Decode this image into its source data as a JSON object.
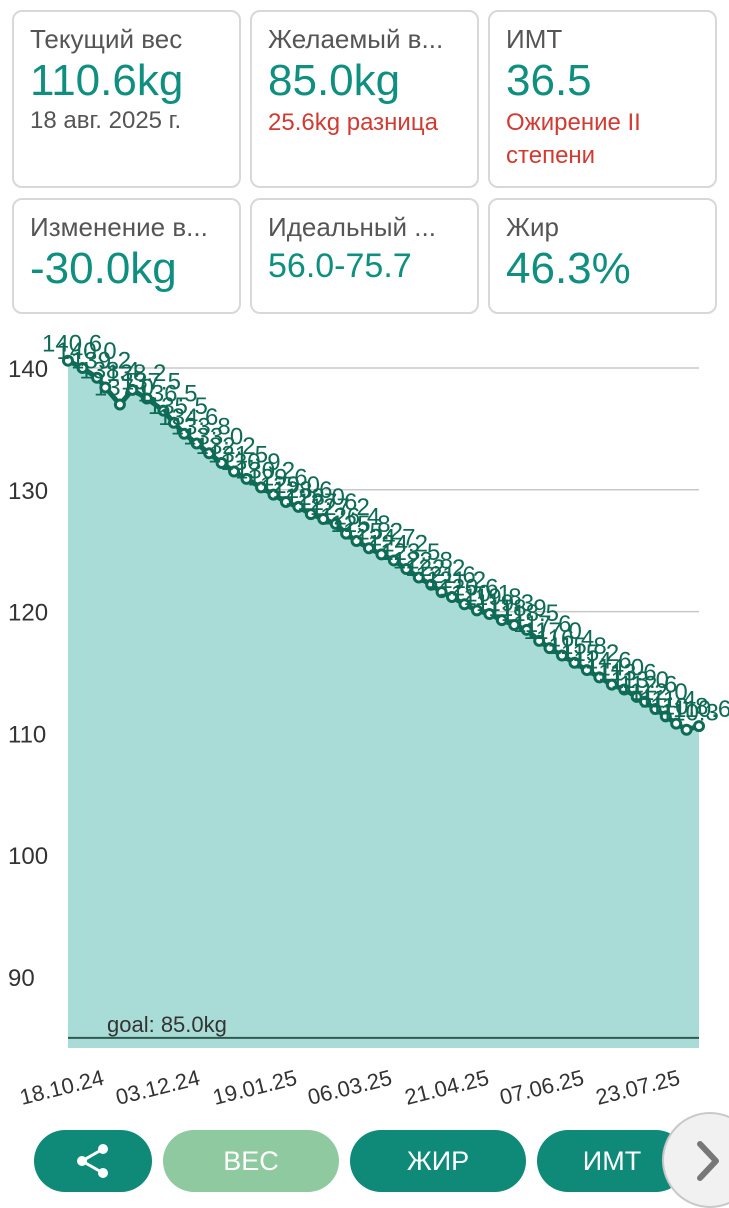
{
  "cards": [
    {
      "label": "Текущий вес",
      "value": "110.6kg",
      "sub": "18 авг. 2025 г.",
      "sub_color": "gray"
    },
    {
      "label": "Желаемый в...",
      "value": "85.0kg",
      "sub": "25.6kg разница",
      "sub_color": "red"
    },
    {
      "label": "ИМТ",
      "value": "36.5",
      "sub": "Ожирение II степени",
      "sub_color": "red"
    },
    {
      "label": "Изменение в...",
      "value": "-30.0kg",
      "sub": ""
    },
    {
      "label": "Идеальный ...",
      "value": "56.0-75.7",
      "sub": ""
    },
    {
      "label": "Жир",
      "value": "46.3%",
      "sub": ""
    }
  ],
  "buttons": {
    "weight": "ВЕС",
    "fat": "ЖИР",
    "bmi": "ИМТ"
  },
  "icons": {
    "share": "share-icon",
    "next": "chevron-right-icon"
  },
  "colors": {
    "accent": "#0f8a78",
    "fill": "#a9dcd6",
    "line": "#0d6b56",
    "red": "#d23a32",
    "light_button": "#8fc9a0"
  },
  "chart_data": {
    "type": "area",
    "title": "",
    "xlabel": "",
    "ylabel": "",
    "ylim": [
      84,
      141.5
    ],
    "yticks": [
      90,
      100,
      110,
      120,
      130,
      140
    ],
    "x_tick_labels": [
      "18.10.24",
      "03.12.24",
      "19.01.25",
      "06.03.25",
      "21.04.25",
      "07.06.25",
      "23.07.25"
    ],
    "grid": true,
    "goal": {
      "value": 85.0,
      "label": "goal: 85.0kg"
    },
    "first_label": "140.6",
    "last_label": "110.6",
    "x": [
      "2024-10-18",
      "2024-10-25",
      "2024-11-01",
      "2024-11-05",
      "2024-11-12",
      "2024-11-18",
      "2024-11-25",
      "2024-12-03",
      "2024-12-08",
      "2024-12-13",
      "2024-12-19",
      "2024-12-25",
      "2024-12-31",
      "2025-01-06",
      "2025-01-12",
      "2025-01-19",
      "2025-01-25",
      "2025-01-31",
      "2025-02-06",
      "2025-02-12",
      "2025-02-18",
      "2025-02-24",
      "2025-03-01",
      "2025-03-06",
      "2025-03-12",
      "2025-03-18",
      "2025-03-24",
      "2025-03-30",
      "2025-04-05",
      "2025-04-11",
      "2025-04-16",
      "2025-04-21",
      "2025-04-27",
      "2025-05-03",
      "2025-05-09",
      "2025-05-15",
      "2025-05-21",
      "2025-05-27",
      "2025-06-02",
      "2025-06-07",
      "2025-06-13",
      "2025-06-19",
      "2025-06-25",
      "2025-07-01",
      "2025-07-07",
      "2025-07-13",
      "2025-07-19",
      "2025-07-23",
      "2025-07-28",
      "2025-08-02",
      "2025-08-07",
      "2025-08-12",
      "2025-08-18"
    ],
    "values": [
      140.6,
      140.0,
      139.2,
      138.4,
      137.0,
      138.2,
      137.5,
      136.5,
      135.5,
      134.6,
      133.8,
      133.0,
      132.2,
      131.5,
      130.9,
      130.2,
      129.6,
      129.0,
      128.6,
      128.0,
      127.6,
      127.2,
      126.4,
      125.8,
      125.2,
      124.7,
      124.2,
      123.5,
      122.8,
      122.2,
      121.6,
      121.2,
      120.6,
      120.1,
      119.8,
      119.3,
      118.9,
      118.5,
      117.6,
      117.0,
      116.4,
      115.8,
      115.2,
      114.6,
      114.0,
      113.6,
      113.0,
      112.6,
      112.0,
      111.4,
      110.8,
      110.3,
      110.6
    ]
  }
}
